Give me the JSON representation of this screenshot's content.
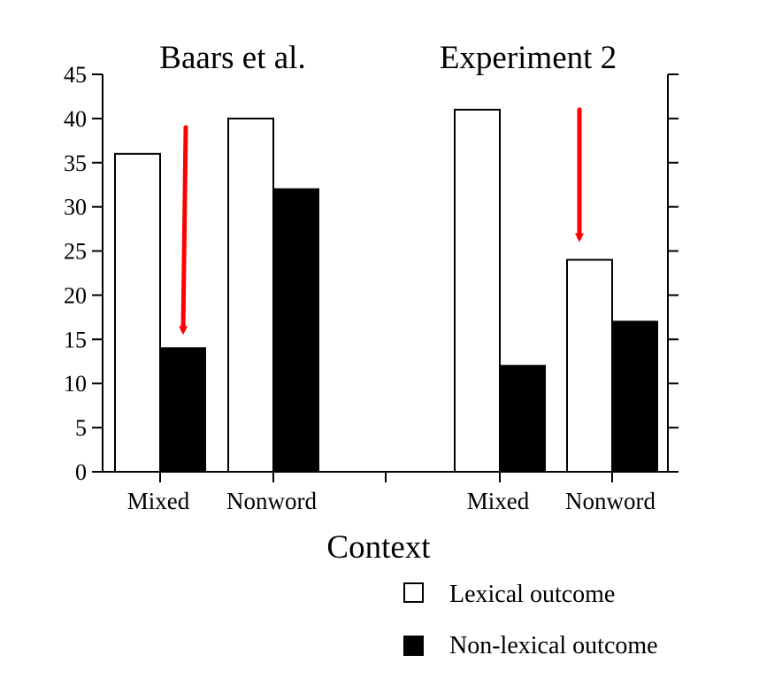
{
  "chart_data": {
    "type": "bar",
    "xlabel": "Context",
    "ylabel": "",
    "ylim": [
      0,
      45
    ],
    "yticks": [
      "0",
      "5",
      "10",
      "15",
      "20",
      "25",
      "30",
      "35",
      "40",
      "45"
    ],
    "legend_position": "bottom-right",
    "groups": [
      {
        "title": "Baars et al.",
        "categories": [
          "Mixed",
          "Nonword"
        ]
      },
      {
        "title": "Experiment 2",
        "categories": [
          "Mixed",
          "Nonword"
        ]
      }
    ],
    "series": [
      {
        "name": "Lexical outcome",
        "fill": "#ffffff",
        "values": [
          [
            36,
            40
          ],
          [
            41,
            24
          ]
        ]
      },
      {
        "name": "Non-lexical outcome",
        "fill": "#000000",
        "values": [
          [
            14,
            32
          ],
          [
            12,
            17
          ]
        ]
      }
    ],
    "annotations": [
      {
        "type": "arrow",
        "color": "#ff0000",
        "group": 0,
        "category": 0,
        "from": 39,
        "to": 16
      },
      {
        "type": "arrow",
        "color": "#ff0000",
        "group": 1,
        "category": 1,
        "from": 41,
        "to": 26.5
      }
    ]
  }
}
